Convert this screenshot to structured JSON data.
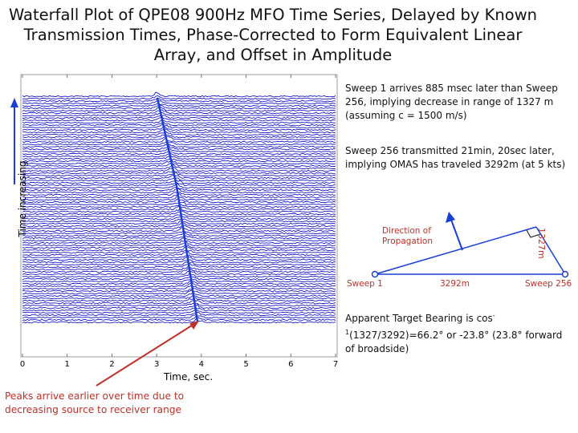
{
  "title": "Waterfall Plot of QPE08 900Hz MFO Time Series, Delayed by Known Transmission Times, Phase-Corrected to Form Equivalent Linear Array, and Offset in Amplitude",
  "plot": {
    "ylabel": "Time increasing",
    "xlabel": "Time, sec.",
    "xticks": [
      "0",
      "1",
      "2",
      "3",
      "4",
      "5",
      "6",
      "7"
    ],
    "xlim": [
      0,
      7
    ],
    "trace_color": "#1a1acc",
    "line_color": "#1a3fd6"
  },
  "notes": {
    "sweep_delay": "Sweep 1 arrives 885 msec later than Sweep 256, implying decrease in range of 1327 m (assuming c = 1500 m/s)",
    "sweep_travel": "Sweep 256 transmitted 21min, 20sec later, implying OMAS has traveled 3292m (at 5 kts)",
    "bearing_prefix": "Apparent Target Bearing is cos",
    "bearing_sup": "-1",
    "bearing_suffix": "(1327/3292)=66.2° or -23.8° (23.8° forward of broadside)",
    "peaks": "Peaks arrive earlier over time due to decreasing source to receiver range"
  },
  "geometry_diagram": {
    "direction_label": "Direction of Propagation",
    "side_label": "1327m",
    "sweep_start": "Sweep 1",
    "distance": "3292m",
    "sweep_end": "Sweep 256",
    "line_color": "#1a3fd6",
    "label_color": "#c0302a"
  }
}
